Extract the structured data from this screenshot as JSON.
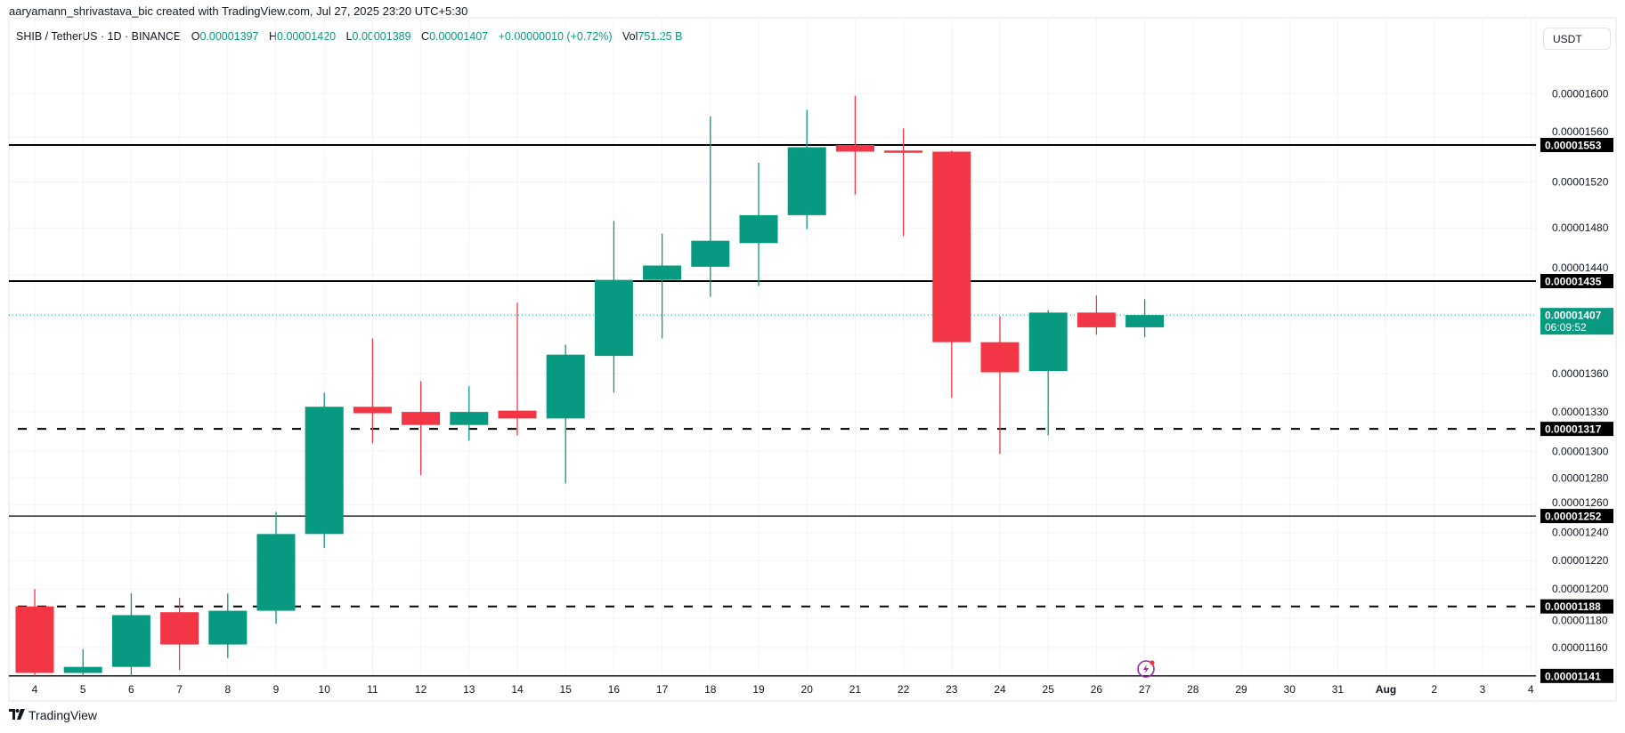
{
  "header": {
    "attribution": "aaryamann_shrivastava_bic created with TradingView.com, Jul 27, 2025 23:20 UTC+5:30"
  },
  "legend": {
    "symbol": "SHIB / TetherUS · 1D · BINANCE",
    "o_label": "O",
    "o": "0.00001397",
    "h_label": "H",
    "h": "0.00001420",
    "l_label": "L",
    "l": "0.00001389",
    "c_label": "C",
    "c": "0.00001407",
    "change": "+0.00000010 (+0.72%)",
    "vol_label": "Vol",
    "vol": "751.25 B"
  },
  "currency_button": "USDT",
  "brand": {
    "name": "TradingView",
    "logo_text": "TV"
  },
  "colors": {
    "up": "#089981",
    "down": "#F23645",
    "line": "#000000",
    "grid": "#f0f3fa"
  },
  "countdown": "06:09:52",
  "chart_data": {
    "type": "candlestick",
    "y_scale": "log",
    "ylim": [
      1.141e-05,
      1.63e-05
    ],
    "grid": true,
    "x_tick_labels": [
      "4",
      "5",
      "6",
      "7",
      "8",
      "9",
      "10",
      "11",
      "12",
      "13",
      "14",
      "15",
      "16",
      "17",
      "18",
      "19",
      "20",
      "21",
      "22",
      "23",
      "24",
      "25",
      "26",
      "27",
      "28",
      "29",
      "30",
      "31",
      "Aug",
      "2",
      "3",
      "4"
    ],
    "y_tick_labels": [
      "0.00001600",
      "0.00001560",
      "0.00001520",
      "0.00001480",
      "0.00001440",
      "0.00001360",
      "0.00001330",
      "0.00001300",
      "0.00001280",
      "0.00001260",
      "0.00001240",
      "0.00001220",
      "0.00001200",
      "0.00001180",
      "0.00001160"
    ],
    "y_ticks": [
      1.6e-05,
      1.56e-05,
      1.52e-05,
      1.48e-05,
      1.44e-05,
      1.36e-05,
      1.33e-05,
      1.3e-05,
      1.28e-05,
      1.26e-05,
      1.24e-05,
      1.22e-05,
      1.2e-05,
      1.18e-05,
      1.16e-05
    ],
    "candles": [
      {
        "date": "4",
        "o": 1.188e-05,
        "h": 1.2e-05,
        "l": 1.141e-05,
        "c": 1.143e-05
      },
      {
        "date": "5",
        "o": 1.143e-05,
        "h": 1.159e-05,
        "l": 1.141e-05,
        "c": 1.147e-05
      },
      {
        "date": "6",
        "o": 1.147e-05,
        "h": 1.197e-05,
        "l": 1.141e-05,
        "c": 1.182e-05
      },
      {
        "date": "7",
        "o": 1.184e-05,
        "h": 1.194e-05,
        "l": 1.145e-05,
        "c": 1.162e-05
      },
      {
        "date": "8",
        "o": 1.162e-05,
        "h": 1.197e-05,
        "l": 1.153e-05,
        "c": 1.185e-05
      },
      {
        "date": "9",
        "o": 1.185e-05,
        "h": 1.255e-05,
        "l": 1.176e-05,
        "c": 1.239e-05
      },
      {
        "date": "10",
        "o": 1.239e-05,
        "h": 1.345e-05,
        "l": 1.229e-05,
        "c": 1.334e-05
      },
      {
        "date": "11",
        "o": 1.334e-05,
        "h": 1.388e-05,
        "l": 1.306e-05,
        "c": 1.329e-05
      },
      {
        "date": "12",
        "o": 1.33e-05,
        "h": 1.354e-05,
        "l": 1.282e-05,
        "c": 1.32e-05
      },
      {
        "date": "13",
        "o": 1.32e-05,
        "h": 1.35e-05,
        "l": 1.308e-05,
        "c": 1.33e-05
      },
      {
        "date": "14",
        "o": 1.331e-05,
        "h": 1.417e-05,
        "l": 1.312e-05,
        "c": 1.325e-05
      },
      {
        "date": "15",
        "o": 1.325e-05,
        "h": 1.383e-05,
        "l": 1.276e-05,
        "c": 1.375e-05
      },
      {
        "date": "16",
        "o": 1.374e-05,
        "h": 1.486e-05,
        "l": 1.345e-05,
        "c": 1.436e-05
      },
      {
        "date": "17",
        "o": 1.436e-05,
        "h": 1.475e-05,
        "l": 1.388e-05,
        "c": 1.448e-05
      },
      {
        "date": "18",
        "o": 1.447e-05,
        "h": 1.579e-05,
        "l": 1.422e-05,
        "c": 1.469e-05
      },
      {
        "date": "19",
        "o": 1.467e-05,
        "h": 1.537e-05,
        "l": 1.431e-05,
        "c": 1.491e-05
      },
      {
        "date": "20",
        "o": 1.491e-05,
        "h": 1.585e-05,
        "l": 1.479e-05,
        "c": 1.551e-05
      },
      {
        "date": "21",
        "o": 1.553e-05,
        "h": 1.598e-05,
        "l": 1.509e-05,
        "c": 1.547e-05
      },
      {
        "date": "22",
        "o": 1.548e-05,
        "h": 1.568e-05,
        "l": 1.473e-05,
        "c": 1.546e-05
      },
      {
        "date": "23",
        "o": 1.547e-05,
        "h": 1.548e-05,
        "l": 1.341e-05,
        "c": 1.385e-05
      },
      {
        "date": "24",
        "o": 1.385e-05,
        "h": 1.406e-05,
        "l": 1.298e-05,
        "c": 1.361e-05
      },
      {
        "date": "25",
        "o": 1.362e-05,
        "h": 1.411e-05,
        "l": 1.312e-05,
        "c": 1.409e-05
      },
      {
        "date": "26",
        "o": 1.409e-05,
        "h": 1.423e-05,
        "l": 1.391e-05,
        "c": 1.397e-05
      },
      {
        "date": "27",
        "o": 1.397e-05,
        "h": 1.42e-05,
        "l": 1.389e-05,
        "c": 1.407e-05
      }
    ],
    "horizontal_lines": [
      {
        "price": 1.553e-05,
        "label": "0.00001553",
        "style": "solid-thick"
      },
      {
        "price": 1.435e-05,
        "label": "0.00001435",
        "style": "solid-thick"
      },
      {
        "price": 1.317e-05,
        "label": "0.00001317",
        "style": "dashed"
      },
      {
        "price": 1.252e-05,
        "label": "0.00001252",
        "style": "solid"
      },
      {
        "price": 1.188e-05,
        "label": "0.00001188",
        "style": "dashed"
      },
      {
        "price": 1.141e-05,
        "label": "0.00001141",
        "style": "solid"
      }
    ],
    "last_price": {
      "price": 1.407e-05,
      "label": "0.00001407"
    }
  }
}
